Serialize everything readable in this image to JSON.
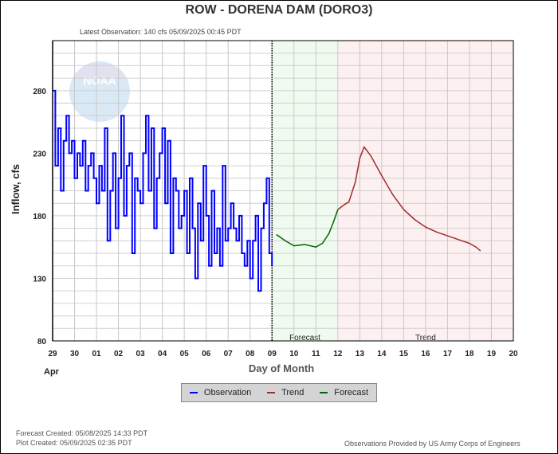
{
  "chart_data": {
    "type": "line",
    "title": "ROW - DORENA DAM  (DORO3)",
    "subtitle": "Latest Observation: 140 cfs 05/09/2025 00:45 PDT",
    "xlabel": "Day of Month",
    "ylabel": "Inflow, cfs",
    "x_units": "days since Apr 29 00:00",
    "xlim": [
      0,
      21
    ],
    "ylim": [
      80,
      320
    ],
    "y_ticks": [
      80,
      130,
      180,
      230,
      280
    ],
    "x_tick_labels": [
      "29",
      "30",
      "01",
      "02",
      "03",
      "04",
      "05",
      "06",
      "07",
      "08",
      "09",
      "10",
      "11",
      "12",
      "13",
      "14",
      "15",
      "16",
      "17",
      "18",
      "19",
      "20"
    ],
    "month_label": "Apr",
    "grid": true,
    "regions": [
      {
        "name": "Forecast",
        "from": 10,
        "to": 13,
        "color": "#f0fbf0"
      },
      {
        "name": "Trend",
        "from": 13,
        "to": 21,
        "color": "#fdf0f0"
      }
    ],
    "series": [
      {
        "name": "Observation",
        "color": "#0000ff",
        "step_hours": 3,
        "start": 0,
        "values": [
          280,
          220,
          250,
          200,
          240,
          260,
          230,
          240,
          210,
          230,
          220,
          240,
          200,
          220,
          230,
          210,
          190,
          220,
          200,
          250,
          160,
          200,
          230,
          170,
          210,
          260,
          180,
          220,
          230,
          150,
          210,
          200,
          190,
          230,
          260,
          200,
          250,
          170,
          210,
          230,
          250,
          190,
          240,
          150,
          210,
          200,
          170,
          180,
          200,
          150,
          210,
          170,
          130,
          190,
          160,
          220,
          180,
          140,
          200,
          150,
          170,
          140,
          220,
          160,
          170,
          190,
          170,
          160,
          180,
          150,
          140,
          160,
          130,
          160,
          180,
          120,
          170,
          190,
          210,
          150,
          140
        ]
      },
      {
        "name": "Trend",
        "color": "#a52a2a",
        "points": [
          [
            13,
            185
          ],
          [
            13.3,
            189
          ],
          [
            13.5,
            191
          ],
          [
            13.8,
            207
          ],
          [
            14,
            226
          ],
          [
            14.2,
            235
          ],
          [
            14.5,
            228
          ],
          [
            15,
            212
          ],
          [
            15.5,
            197
          ],
          [
            16,
            185
          ],
          [
            16.5,
            177
          ],
          [
            17,
            171
          ],
          [
            17.5,
            167
          ],
          [
            18,
            164
          ],
          [
            18.5,
            161
          ],
          [
            19,
            158
          ],
          [
            19.3,
            155
          ],
          [
            19.5,
            152
          ]
        ]
      },
      {
        "name": "Forecast",
        "color": "#006400",
        "points": [
          [
            10.2,
            165
          ],
          [
            10.6,
            160
          ],
          [
            11,
            156
          ],
          [
            11.5,
            157
          ],
          [
            12,
            155
          ],
          [
            12.3,
            158
          ],
          [
            12.6,
            166
          ],
          [
            12.8,
            175
          ],
          [
            13,
            185
          ]
        ]
      }
    ],
    "legend": {
      "placement": "bottom-center",
      "entries": [
        "Observation",
        "Trend",
        "Forecast"
      ]
    }
  },
  "footer": {
    "forecast_created": "Forecast Created: 05/08/2025 14:33 PDT",
    "plot_created": "Plot Created: 05/09/2025 02:35 PDT",
    "credit": "Observations Provided by US Army Corps of Engineers"
  },
  "logo_text": "NOAA"
}
